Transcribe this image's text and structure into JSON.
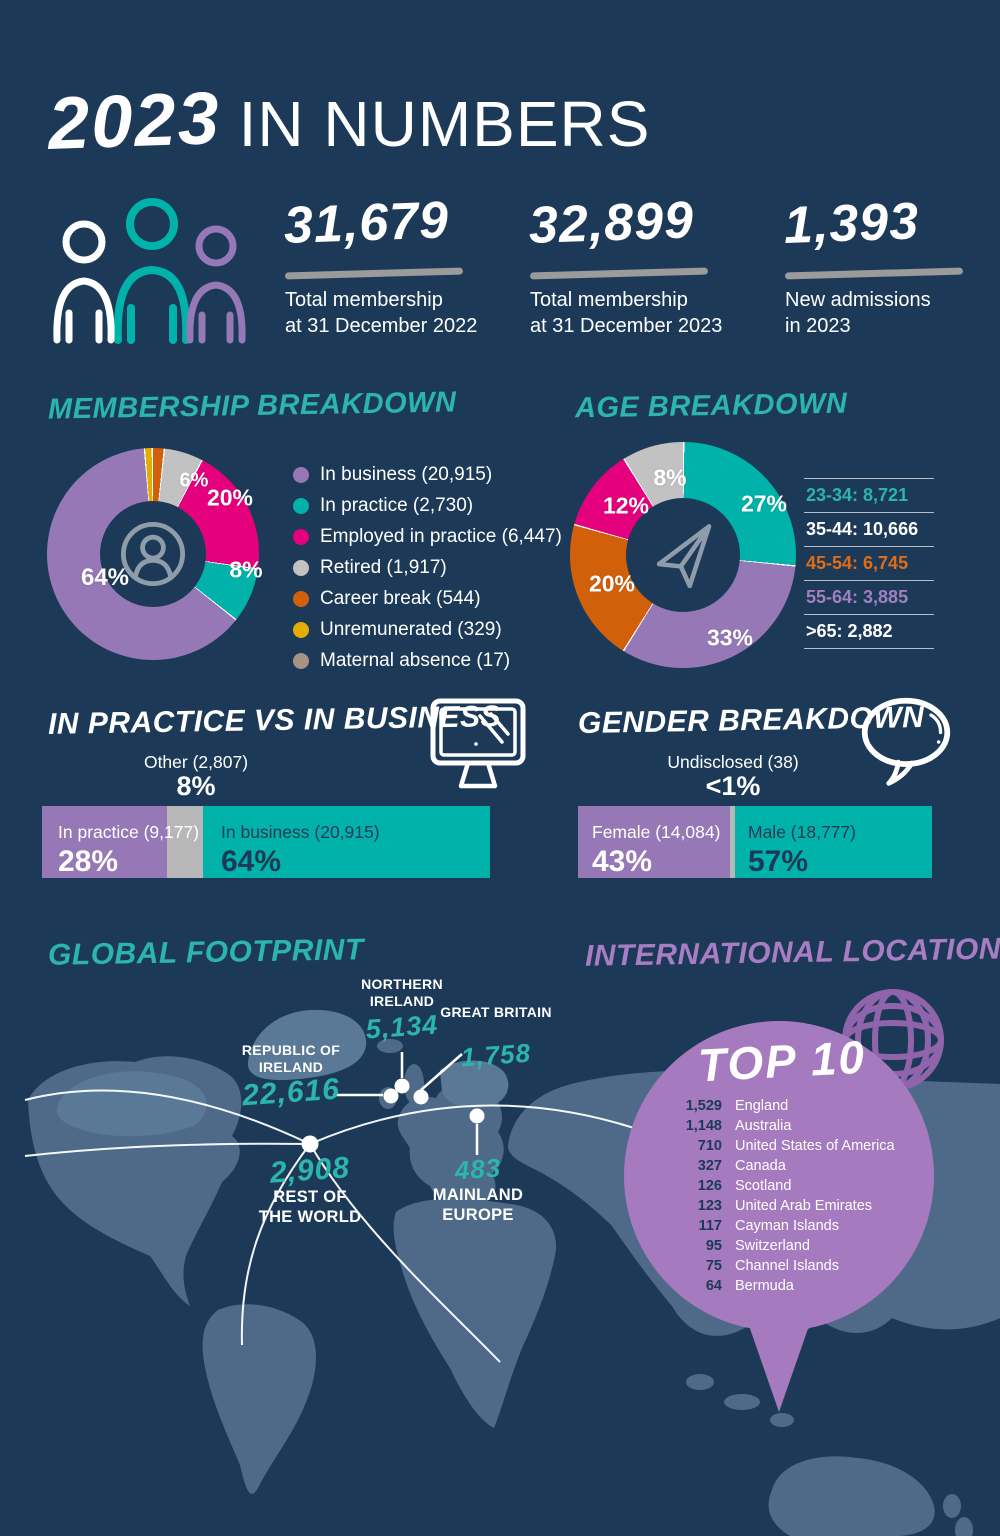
{
  "colors": {
    "background": "#1c3a57",
    "teal": "#00b2a9",
    "teal_text": "#2cb5ac",
    "purple": "#9678b6",
    "purple_bubble": "#a57abe",
    "purple_title": "#a87dc4",
    "magenta": "#e5007d",
    "grey": "#c2c2c2",
    "bar_grey": "#b7b7b7",
    "orange": "#d2600b",
    "orange_text": "#e06d15",
    "yellow": "#e3ac00",
    "taupe": "#a59384",
    "map_land": "#4e6a88",
    "map_land_light": "#5a7996",
    "underline_grey": "#9b9b9b",
    "icon_grey": "#8f9dab",
    "white": "#ffffff"
  },
  "header": {
    "year": "2023",
    "title_rest": "IN NUMBERS",
    "stats": [
      {
        "value": "31,679",
        "line1": "Total membership",
        "line2": "at 31 December 2022"
      },
      {
        "value": "32,899",
        "line1": "Total membership",
        "line2": "at 31 December 2023"
      },
      {
        "value": "1,393",
        "line1": "New admissions",
        "line2": "in 2023"
      }
    ]
  },
  "membership": {
    "title": "MEMBERSHIP BREAKDOWN",
    "legend": [
      {
        "label": "In business (20,915)"
      },
      {
        "label": "In practice (2,730)"
      },
      {
        "label": "Employed in practice (6,447)"
      },
      {
        "label": "Retired (1,917)"
      },
      {
        "label": "Career break (544)"
      },
      {
        "label": "Unremunerated (329)"
      },
      {
        "label": "Maternal absence (17)"
      }
    ],
    "pct": {
      "business": "64%",
      "practice": "8%",
      "employed": "20%",
      "retired": "6%"
    }
  },
  "age": {
    "title": "AGE BREAKDOWN",
    "pct": {
      "a": "27%",
      "b": "33%",
      "c": "20%",
      "d": "12%",
      "e": "8%"
    },
    "rows": [
      {
        "text": "23-34: 8,721"
      },
      {
        "text": "35-44: 10,666"
      },
      {
        "text": "45-54: 6,745"
      },
      {
        "text": "55-64: 3,885"
      },
      {
        "text": ">65: 2,882"
      }
    ]
  },
  "pvb": {
    "title": "IN PRACTICE VS IN BUSINESS",
    "other_label": "Other (2,807)",
    "other_pct": "8%",
    "left_label": "In practice (9,177)",
    "left_pct": "28%",
    "right_label": "In business (20,915)",
    "right_pct": "64%"
  },
  "gender": {
    "title": "GENDER BREAKDOWN",
    "other_label": "Undisclosed (38)",
    "other_pct": "<1%",
    "left_label": "Female (14,084)",
    "left_pct": "43%",
    "right_label": "Male (18,777)",
    "right_pct": "57%"
  },
  "global": {
    "title": "GLOBAL FOOTPRINT",
    "labels": {
      "ni": {
        "name": "NORTHERN IRELAND",
        "value": "5,134"
      },
      "gb": {
        "name": "GREAT BRITAIN",
        "value": "1,758"
      },
      "roi": {
        "name": "REPUBLIC OF IRELAND",
        "value": "22,616"
      },
      "row": {
        "name": "REST OF THE WORLD",
        "value": "2,908"
      },
      "eu": {
        "name": "MAINLAND EUROPE",
        "value": "483"
      }
    }
  },
  "international": {
    "title": "INTERNATIONAL LOCATIONS",
    "top10_title": "TOP 10",
    "top10": [
      {
        "value": "1,529",
        "name": "England"
      },
      {
        "value": "1,148",
        "name": "Australia"
      },
      {
        "value": "710",
        "name": "United States of America"
      },
      {
        "value": "327",
        "name": "Canada"
      },
      {
        "value": "126",
        "name": "Scotland"
      },
      {
        "value": "123",
        "name": "United Arab Emirates"
      },
      {
        "value": "117",
        "name": "Cayman Islands"
      },
      {
        "value": "95",
        "name": "Switzerland"
      },
      {
        "value": "75",
        "name": "Channel Islands"
      },
      {
        "value": "64",
        "name": "Bermuda"
      }
    ]
  },
  "chart_data": [
    {
      "type": "pie",
      "title": "Membership breakdown",
      "total": 32899,
      "segments": [
        {
          "label": "In business",
          "value": 20915,
          "pct": 64,
          "color": "#9678b6"
        },
        {
          "label": "In practice",
          "value": 2730,
          "pct": 8,
          "color": "#00b2a9"
        },
        {
          "label": "Employed in practice",
          "value": 6447,
          "pct": 20,
          "color": "#e5007d"
        },
        {
          "label": "Retired",
          "value": 1917,
          "pct": 6,
          "color": "#c2c2c2"
        },
        {
          "label": "Career break",
          "value": 544,
          "pct": 1.65,
          "color": "#d2600b"
        },
        {
          "label": "Unremunerated",
          "value": 329,
          "pct": 1.0,
          "color": "#e3ac00"
        },
        {
          "label": "Maternal absence",
          "value": 17,
          "pct": 0.05,
          "color": "#a59384"
        }
      ],
      "paint": [
        {
          "color": "#e3ac00",
          "pct": 1.0
        },
        {
          "color": "#d2600b",
          "pct": 1.65
        },
        {
          "color": "#c2c2c2",
          "pct": 5.83
        },
        {
          "color": "#e5007d",
          "pct": 19.6
        },
        {
          "color": "#00b2a9",
          "pct": 8.3
        },
        {
          "color": "#9678b6",
          "pct": 63.57
        }
      ]
    },
    {
      "type": "pie",
      "title": "Age breakdown",
      "total": 32899,
      "segments": [
        {
          "label": "23-34",
          "value": 8721,
          "pct": 27,
          "color": "#00b2a9"
        },
        {
          "label": "35-44",
          "value": 10666,
          "pct": 33,
          "color": "#9678b6"
        },
        {
          "label": "45-54",
          "value": 6745,
          "pct": 20,
          "color": "#d2600b"
        },
        {
          "label": "55-64",
          "value": 3885,
          "pct": 12,
          "color": "#e5007d"
        },
        {
          "label": ">65",
          "value": 2882,
          "pct": 8,
          "color": "#c2c2c2"
        }
      ],
      "paint": [
        {
          "color": "#00b2a9",
          "pct": 26.51
        },
        {
          "color": "#9678b6",
          "pct": 32.42
        },
        {
          "color": "#d2600b",
          "pct": 20.5
        },
        {
          "color": "#e5007d",
          "pct": 11.81
        },
        {
          "color": "#c2c2c2",
          "pct": 8.76
        }
      ]
    },
    {
      "type": "bar",
      "title": "In practice vs in business",
      "stacked": true,
      "segments": [
        {
          "label": "In practice",
          "value": 9177,
          "pct": 28,
          "color": "#9678b6"
        },
        {
          "label": "Other",
          "value": 2807,
          "pct": 8,
          "color": "#b7b7b7"
        },
        {
          "label": "In business",
          "value": 20915,
          "pct": 64,
          "color": "#00b2a9"
        }
      ],
      "paint": [
        {
          "color": "#9678b6",
          "pct": 28
        },
        {
          "color": "#b7b7b7",
          "pct": 8
        },
        {
          "color": "#00b2a9",
          "pct": 64
        }
      ]
    },
    {
      "type": "bar",
      "title": "Gender breakdown",
      "stacked": true,
      "segments": [
        {
          "label": "Female",
          "value": 14084,
          "pct": 43,
          "color": "#9678b6"
        },
        {
          "label": "Undisclosed",
          "value": 38,
          "pct": 1,
          "color": "#b7b7b7"
        },
        {
          "label": "Male",
          "value": 18777,
          "pct": 57,
          "color": "#00b2a9"
        }
      ],
      "paint": [
        {
          "color": "#9678b6",
          "pct": 43
        },
        {
          "color": "#b7b7b7",
          "pct": 1.3
        },
        {
          "color": "#00b2a9",
          "pct": 55.7
        }
      ]
    }
  ]
}
